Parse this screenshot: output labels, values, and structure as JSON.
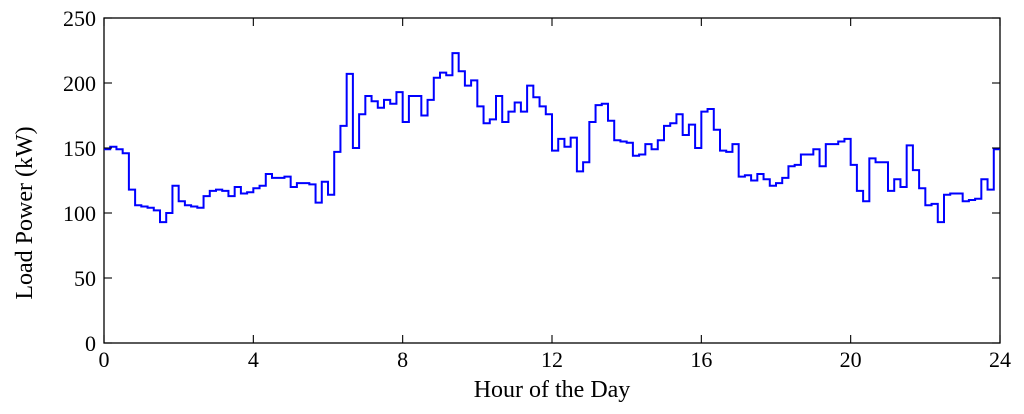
{
  "chart_data": {
    "type": "line",
    "title": "",
    "xlabel": "Hour of the Day",
    "ylabel": "Load Power (kW)",
    "xlim": [
      0,
      24
    ],
    "ylim": [
      0,
      250
    ],
    "xticks": [
      0,
      4,
      8,
      12,
      16,
      20,
      24
    ],
    "yticks": [
      0,
      50,
      100,
      150,
      200,
      250
    ],
    "grid": false,
    "legend": "none",
    "step": true,
    "series_color": "#0000ff",
    "step_hours": 0.16666667,
    "series": [
      {
        "values": [
          149,
          151,
          149,
          146,
          118,
          106,
          105,
          104,
          102,
          93,
          100,
          121,
          109,
          106,
          105,
          104,
          113,
          117,
          118,
          117,
          113,
          120,
          115,
          116,
          119,
          121,
          130,
          127,
          127,
          128,
          120,
          123,
          123,
          122,
          108,
          124,
          114,
          147,
          167,
          207,
          150,
          176,
          190,
          186,
          181,
          187,
          184,
          193,
          170,
          190,
          190,
          175,
          187,
          204,
          208,
          206,
          223,
          209,
          198,
          202,
          182,
          169,
          172,
          190,
          170,
          178,
          185,
          178,
          198,
          189,
          182,
          176,
          148,
          157,
          151,
          158,
          132,
          139,
          170,
          183,
          184,
          171,
          156,
          155,
          154,
          144,
          145,
          153,
          149,
          156,
          167,
          169,
          176,
          160,
          168,
          150,
          178,
          180,
          164,
          148,
          147,
          153,
          128,
          129,
          125,
          130,
          126,
          121,
          123,
          127,
          136,
          137,
          145,
          145,
          149,
          136,
          153,
          153,
          155,
          157,
          137,
          117,
          109,
          142,
          139,
          139,
          117,
          126,
          120,
          152,
          133,
          119,
          106,
          107,
          93,
          114,
          115,
          115,
          109,
          110,
          111,
          126,
          118,
          149
        ]
      }
    ]
  }
}
